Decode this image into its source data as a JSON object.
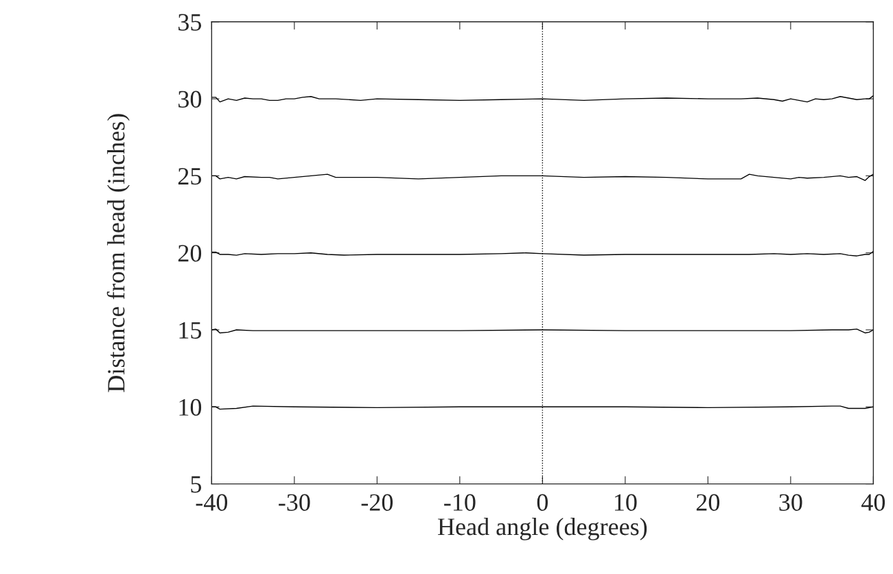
{
  "chart_data": {
    "type": "line",
    "xlabel": "Head angle (degrees)",
    "ylabel": "Distance from head (inches)",
    "xlim": [
      -40,
      40
    ],
    "ylim": [
      5,
      35
    ],
    "xticks": [
      -40,
      -30,
      -20,
      -10,
      0,
      10,
      20,
      30,
      40
    ],
    "yticks": [
      5,
      10,
      15,
      20,
      25,
      30,
      35
    ],
    "grid": false,
    "marker": "none",
    "line_style": "solid",
    "ref_lines": [
      {
        "axis": "x",
        "value": 0,
        "line_style": "dotted",
        "color": "#000000"
      }
    ],
    "series": [
      {
        "color": "#000000",
        "x": [
          -40,
          -39.5,
          -39,
          -38,
          -37,
          -36,
          -35,
          -34,
          -33,
          -32,
          -31,
          -30,
          -29,
          -28,
          -27,
          -26,
          -25,
          -22,
          -20,
          -15,
          -10,
          -5,
          0,
          5,
          10,
          15,
          20,
          24,
          26,
          28,
          29,
          30,
          31,
          32,
          33,
          34,
          35,
          36,
          37,
          38,
          39,
          39.5,
          40
        ],
        "values": [
          30.1,
          30.1,
          29.8,
          30.0,
          29.9,
          30.05,
          30.0,
          30.0,
          29.9,
          29.9,
          30.0,
          30.0,
          30.1,
          30.15,
          30.0,
          30.0,
          30.0,
          29.9,
          30.0,
          29.95,
          29.9,
          29.95,
          30.0,
          29.9,
          30.0,
          30.05,
          30.0,
          30.0,
          30.05,
          29.95,
          29.85,
          30.0,
          29.9,
          29.8,
          30.0,
          29.95,
          30.0,
          30.15,
          30.05,
          29.95,
          30.0,
          30.0,
          30.2
        ]
      },
      {
        "color": "#000000",
        "x": [
          -40,
          -39.5,
          -39,
          -38,
          -37,
          -36,
          -34,
          -33,
          -32,
          -30,
          -28,
          -26,
          -25,
          -22,
          -20,
          -15,
          -10,
          -5,
          0,
          5,
          10,
          15,
          20,
          24,
          25,
          26,
          28,
          30,
          31,
          32,
          34,
          36,
          37,
          38,
          39,
          39.5,
          40
        ],
        "values": [
          25.0,
          25.0,
          24.8,
          24.9,
          24.8,
          24.95,
          24.9,
          24.9,
          24.8,
          24.9,
          25.0,
          25.1,
          24.9,
          24.9,
          24.9,
          24.8,
          24.9,
          25.0,
          25.0,
          24.9,
          24.95,
          24.9,
          24.8,
          24.8,
          25.1,
          25.0,
          24.9,
          24.8,
          24.9,
          24.85,
          24.9,
          25.0,
          24.9,
          24.95,
          24.7,
          24.95,
          25.1
        ]
      },
      {
        "color": "#000000",
        "x": [
          -40,
          -39.5,
          -39,
          -38,
          -37,
          -36,
          -34,
          -32,
          -30,
          -28,
          -26,
          -24,
          -20,
          -15,
          -10,
          -5,
          -2,
          0,
          5,
          10,
          15,
          20,
          25,
          28,
          30,
          32,
          34,
          36,
          37,
          38,
          39,
          39.5,
          40
        ],
        "values": [
          20.05,
          20.05,
          19.9,
          19.9,
          19.85,
          19.95,
          19.9,
          19.95,
          19.95,
          20.0,
          19.9,
          19.85,
          19.9,
          19.9,
          19.9,
          19.95,
          20.0,
          19.95,
          19.85,
          19.9,
          19.9,
          19.9,
          19.9,
          19.95,
          19.9,
          19.95,
          19.9,
          19.95,
          19.85,
          19.8,
          19.9,
          19.9,
          20.1
        ]
      },
      {
        "color": "#000000",
        "x": [
          -40,
          -39.5,
          -39,
          -38,
          -37,
          -35,
          -30,
          -20,
          -10,
          0,
          10,
          20,
          30,
          35,
          36,
          37,
          38,
          39,
          39.5,
          40
        ],
        "values": [
          15.0,
          15.05,
          14.8,
          14.85,
          15.0,
          14.95,
          14.95,
          14.95,
          14.95,
          15.0,
          14.95,
          14.95,
          14.95,
          15.0,
          15.0,
          15.0,
          15.05,
          14.8,
          14.85,
          15.0
        ]
      },
      {
        "color": "#000000",
        "x": [
          -40,
          -39.5,
          -39,
          -37,
          -35,
          -30,
          -20,
          -10,
          0,
          10,
          20,
          30,
          35,
          36,
          37,
          38,
          39,
          40
        ],
        "values": [
          10.0,
          10.0,
          9.85,
          9.9,
          10.05,
          10.0,
          9.95,
          10.0,
          10.0,
          10.0,
          9.95,
          10.0,
          10.05,
          10.05,
          9.9,
          9.9,
          9.9,
          10.0
        ]
      }
    ]
  }
}
